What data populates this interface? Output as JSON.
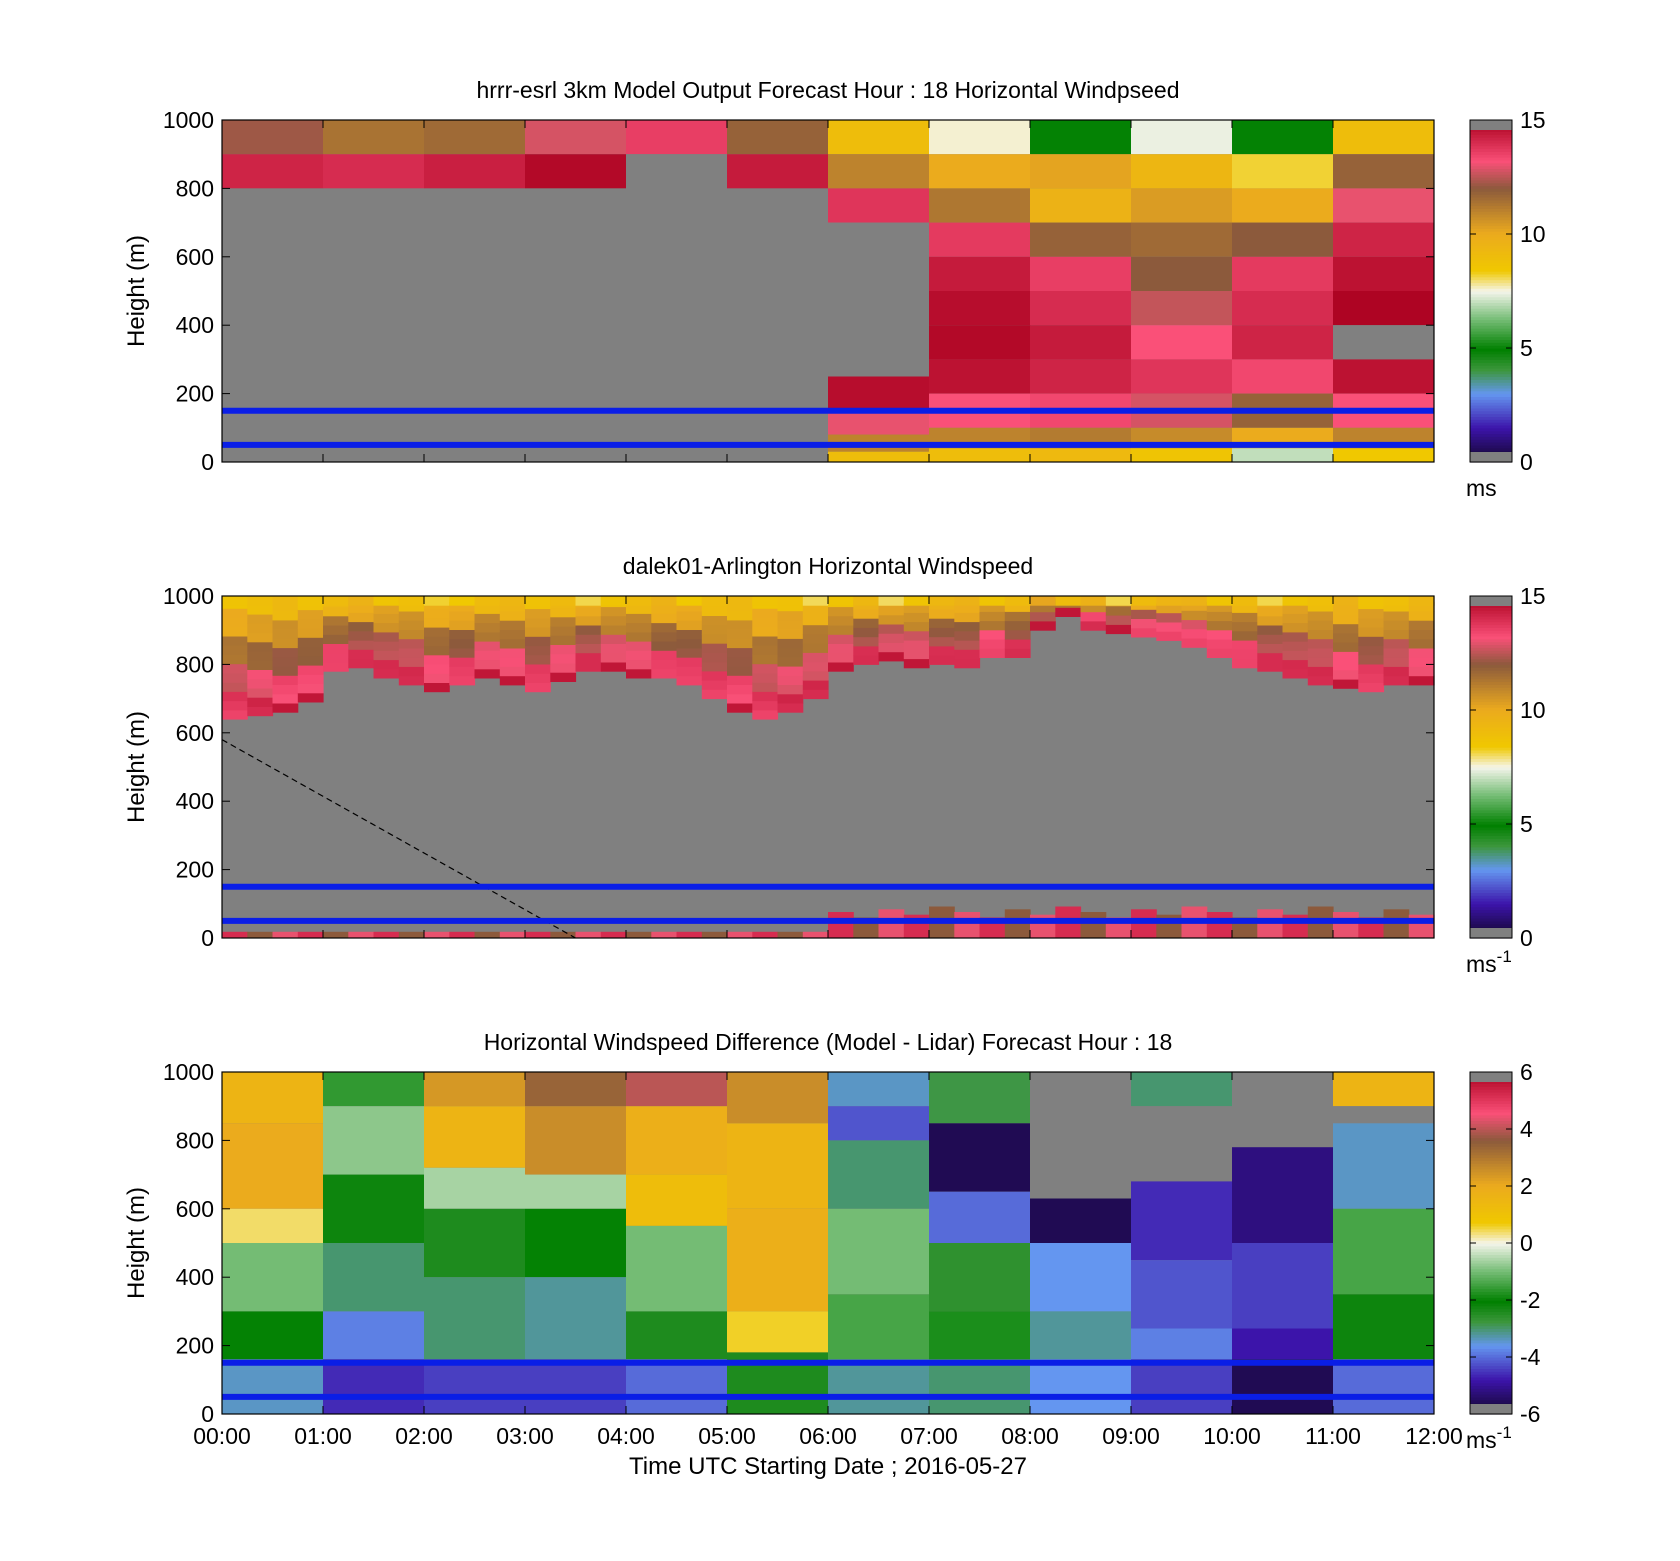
{
  "figure": {
    "xlabel": "Time UTC  Starting Date ; 2016-05-27",
    "x_tick_labels": [
      "00:00",
      "01:00",
      "02:00",
      "03:00",
      "04:00",
      "05:00",
      "06:00",
      "07:00",
      "08:00",
      "09:00",
      "10:00",
      "11:00",
      "12:00"
    ]
  },
  "chart_data": [
    {
      "type": "heatmap",
      "title": "hrrr-esrl 3km Model Output   Forecast Hour : 18 Horizontal Windpseed",
      "ylabel": "Height (m)",
      "ylim": [
        0,
        1000
      ],
      "y_ticks": [
        0,
        200,
        400,
        600,
        800,
        1000
      ],
      "x_hours": [
        0,
        12
      ],
      "colorbar": {
        "min": 0,
        "max": 15,
        "ticks": [
          0,
          5,
          10,
          15
        ],
        "unit": "ms",
        "unit_sup": ""
      },
      "missing_color": "#808080",
      "reference_lines_m": [
        150,
        50
      ],
      "reference_line_color": "#0a1ee6",
      "columns": [
        {
          "bands": [
            [
              900,
              1000,
              12.2
            ],
            [
              800,
              900,
              14.2
            ],
            [
              0,
              800,
              null
            ]
          ]
        },
        {
          "bands": [
            [
              900,
              1000,
              11.4
            ],
            [
              800,
              900,
              14.0
            ],
            [
              0,
              800,
              null
            ]
          ]
        },
        {
          "bands": [
            [
              900,
              1000,
              11.6
            ],
            [
              800,
              900,
              14.3
            ],
            [
              0,
              800,
              null
            ]
          ]
        },
        {
          "bands": [
            [
              900,
              1000,
              12.8
            ],
            [
              800,
              900,
              14.8
            ],
            [
              0,
              800,
              null
            ]
          ]
        },
        {
          "bands": [
            [
              900,
              1000,
              13.6
            ],
            [
              0,
              900,
              null
            ]
          ]
        },
        {
          "bands": [
            [
              900,
              1000,
              11.8
            ],
            [
              800,
              900,
              14.4
            ],
            [
              0,
              800,
              null
            ]
          ]
        },
        {
          "bands": [
            [
              900,
              1000,
              9.0
            ],
            [
              800,
              900,
              11.0
            ],
            [
              700,
              800,
              13.8
            ],
            [
              250,
              700,
              null
            ],
            [
              150,
              250,
              14.7
            ],
            [
              80,
              150,
              13.0
            ],
            [
              30,
              80,
              11.0
            ],
            [
              0,
              30,
              9.0
            ]
          ]
        },
        {
          "bands": [
            [
              900,
              1000,
              7.6
            ],
            [
              800,
              900,
              10.0
            ],
            [
              700,
              800,
              11.3
            ],
            [
              600,
              700,
              13.7
            ],
            [
              500,
              600,
              14.4
            ],
            [
              400,
              500,
              14.7
            ],
            [
              300,
              400,
              14.8
            ],
            [
              200,
              300,
              14.6
            ],
            [
              100,
              200,
              13.2
            ],
            [
              40,
              100,
              11.0
            ],
            [
              0,
              40,
              9.0
            ]
          ]
        },
        {
          "bands": [
            [
              900,
              1000,
              5.0
            ],
            [
              800,
              900,
              10.2
            ],
            [
              700,
              800,
              9.6
            ],
            [
              600,
              700,
              11.8
            ],
            [
              500,
              600,
              13.6
            ],
            [
              400,
              500,
              14.0
            ],
            [
              300,
              400,
              14.4
            ],
            [
              200,
              300,
              14.2
            ],
            [
              100,
              200,
              13.4
            ],
            [
              40,
              100,
              11.2
            ],
            [
              0,
              40,
              9.2
            ]
          ]
        },
        {
          "bands": [
            [
              900,
              1000,
              7.4
            ],
            [
              800,
              900,
              9.4
            ],
            [
              700,
              800,
              10.4
            ],
            [
              600,
              700,
              11.6
            ],
            [
              500,
              600,
              12.0
            ],
            [
              400,
              500,
              12.6
            ],
            [
              300,
              400,
              13.2
            ],
            [
              200,
              300,
              13.8
            ],
            [
              100,
              200,
              12.8
            ],
            [
              40,
              100,
              10.8
            ],
            [
              0,
              40,
              8.6
            ]
          ]
        },
        {
          "bands": [
            [
              900,
              1000,
              5.0
            ],
            [
              800,
              900,
              8.2
            ],
            [
              700,
              800,
              10.0
            ],
            [
              600,
              700,
              12.0
            ],
            [
              500,
              600,
              13.7
            ],
            [
              400,
              500,
              14.0
            ],
            [
              300,
              400,
              14.2
            ],
            [
              200,
              300,
              13.4
            ],
            [
              100,
              200,
              11.8
            ],
            [
              40,
              100,
              10.0
            ],
            [
              0,
              40,
              7.0
            ]
          ]
        },
        {
          "bands": [
            [
              900,
              1000,
              9.0
            ],
            [
              800,
              900,
              11.8
            ],
            [
              700,
              800,
              13.0
            ],
            [
              600,
              700,
              14.2
            ],
            [
              500,
              600,
              14.6
            ],
            [
              400,
              500,
              14.9
            ],
            [
              300,
              400,
              null
            ],
            [
              200,
              300,
              14.6
            ],
            [
              100,
              200,
              13.2
            ],
            [
              40,
              100,
              11.0
            ],
            [
              0,
              40,
              8.4
            ]
          ]
        }
      ]
    },
    {
      "type": "heatmap",
      "title": "dalek01-Arlington  Horizontal Windspeed",
      "ylabel": "Height (m)",
      "ylim": [
        0,
        1000
      ],
      "y_ticks": [
        0,
        200,
        400,
        600,
        800,
        1000
      ],
      "x_hours": [
        0,
        12
      ],
      "colorbar": {
        "min": 0,
        "max": 15,
        "ticks": [
          0,
          5,
          10,
          15
        ],
        "unit": "ms",
        "unit_sup": "-1"
      },
      "missing_color": "#808080",
      "reference_lines_m": [
        150,
        50
      ],
      "reference_line_color": "#0a1ee6",
      "diagonal_dashed_line": {
        "from_hour": 0,
        "from_m": 580,
        "to_hour": 3.5,
        "to_m": 0
      },
      "gate_height_m": 9,
      "time_step_hours": 0.25,
      "cloud_base_m": [
        640,
        650,
        660,
        690,
        780,
        790,
        760,
        740,
        720,
        740,
        760,
        740,
        720,
        750,
        780,
        780,
        760,
        760,
        740,
        700,
        660,
        640,
        660,
        700,
        780,
        800,
        810,
        790,
        800,
        790,
        820,
        820,
        900,
        940,
        900,
        890,
        880,
        870,
        850,
        820,
        790,
        780,
        760,
        740,
        730,
        720,
        740,
        740
      ],
      "upper_layer_profile": [
        {
          "at": 0.0,
          "value": 14.0
        },
        {
          "at": 0.25,
          "value": 13.0
        },
        {
          "at": 0.5,
          "value": 11.5
        },
        {
          "at": 0.75,
          "value": 10.0
        },
        {
          "at": 1.0,
          "value": 8.5
        }
      ],
      "surface_layer_m": 60,
      "surface_layer_value": 14.0,
      "near_surface_strong_from_hour": 6.0
    },
    {
      "type": "heatmap",
      "title": "Horizontal Windspeed Difference (Model - Lidar) Forecast Hour : 18",
      "ylabel": "Height (m)",
      "ylim": [
        0,
        1000
      ],
      "y_ticks": [
        0,
        200,
        400,
        600,
        800,
        1000
      ],
      "x_hours": [
        0,
        12
      ],
      "colorbar": {
        "min": -6,
        "max": 6,
        "ticks": [
          -6,
          -4,
          -2,
          0,
          2,
          4,
          6
        ],
        "unit": "ms",
        "unit_sup": "-1"
      },
      "missing_color": "#808080",
      "reference_lines_m": [
        150,
        50
      ],
      "reference_line_color": "#0a1ee6",
      "columns": [
        {
          "bands": [
            [
              850,
              1000,
              1.6
            ],
            [
              600,
              850,
              2.0
            ],
            [
              500,
              600,
              0.4
            ],
            [
              300,
              500,
              -1.0
            ],
            [
              160,
              300,
              -2.0
            ],
            [
              0,
              160,
              -3.4
            ]
          ]
        },
        {
          "bands": [
            [
              900,
              1000,
              -1.6
            ],
            [
              700,
              900,
              -0.8
            ],
            [
              500,
              700,
              -2.2
            ],
            [
              300,
              500,
              -3.0
            ],
            [
              160,
              300,
              -3.8
            ],
            [
              0,
              160,
              -4.6
            ]
          ]
        },
        {
          "bands": [
            [
              900,
              1000,
              2.4
            ],
            [
              720,
              900,
              1.6
            ],
            [
              600,
              720,
              -0.6
            ],
            [
              400,
              600,
              -2.4
            ],
            [
              160,
              400,
              -3.0
            ],
            [
              0,
              160,
              -4.4
            ]
          ]
        },
        {
          "bands": [
            [
              900,
              1000,
              3.4
            ],
            [
              700,
              900,
              2.6
            ],
            [
              600,
              700,
              -0.6
            ],
            [
              400,
              600,
              -2.0
            ],
            [
              160,
              400,
              -3.2
            ],
            [
              0,
              160,
              -4.4
            ]
          ]
        },
        {
          "bands": [
            [
              900,
              1000,
              4.0
            ],
            [
              700,
              900,
              1.8
            ],
            [
              550,
              700,
              1.2
            ],
            [
              300,
              550,
              -1.0
            ],
            [
              160,
              300,
              -2.4
            ],
            [
              0,
              160,
              -4.0
            ]
          ]
        },
        {
          "bands": [
            [
              850,
              1000,
              2.6
            ],
            [
              600,
              850,
              1.6
            ],
            [
              300,
              600,
              1.8
            ],
            [
              180,
              300,
              0.6
            ],
            [
              0,
              180,
              -2.4
            ]
          ]
        },
        {
          "bands": [
            [
              900,
              1000,
              -3.4
            ],
            [
              800,
              900,
              -4.2
            ],
            [
              600,
              800,
              -3.0
            ],
            [
              350,
              600,
              -1.0
            ],
            [
              160,
              350,
              -1.4
            ],
            [
              0,
              160,
              -3.2
            ]
          ]
        },
        {
          "bands": [
            [
              850,
              1000,
              -2.8
            ],
            [
              650,
              850,
              -5.6
            ],
            [
              500,
              650,
              -4.0
            ],
            [
              300,
              500,
              -2.6
            ],
            [
              160,
              300,
              -1.8
            ],
            [
              0,
              160,
              -3.0
            ]
          ]
        },
        {
          "bands": [
            [
              880,
              1000,
              null
            ],
            [
              630,
              880,
              null
            ],
            [
              500,
              630,
              -5.6
            ],
            [
              300,
              500,
              -3.6
            ],
            [
              160,
              300,
              -3.2
            ],
            [
              0,
              160,
              -3.6
            ]
          ]
        },
        {
          "bands": [
            [
              900,
              1000,
              -3.0
            ],
            [
              680,
              900,
              null
            ],
            [
              450,
              680,
              -4.6
            ],
            [
              250,
              450,
              -4.2
            ],
            [
              160,
              250,
              -3.8
            ],
            [
              0,
              160,
              -4.4
            ]
          ]
        },
        {
          "bands": [
            [
              880,
              1000,
              null
            ],
            [
              780,
              880,
              null
            ],
            [
              500,
              780,
              -5.2
            ],
            [
              250,
              500,
              -4.4
            ],
            [
              160,
              250,
              -4.8
            ],
            [
              0,
              160,
              -5.6
            ]
          ]
        },
        {
          "bands": [
            [
              900,
              1000,
              1.6
            ],
            [
              850,
              900,
              null
            ],
            [
              600,
              850,
              -3.4
            ],
            [
              350,
              600,
              -1.4
            ],
            [
              160,
              350,
              -2.2
            ],
            [
              0,
              160,
              -4.0
            ]
          ]
        }
      ]
    }
  ]
}
